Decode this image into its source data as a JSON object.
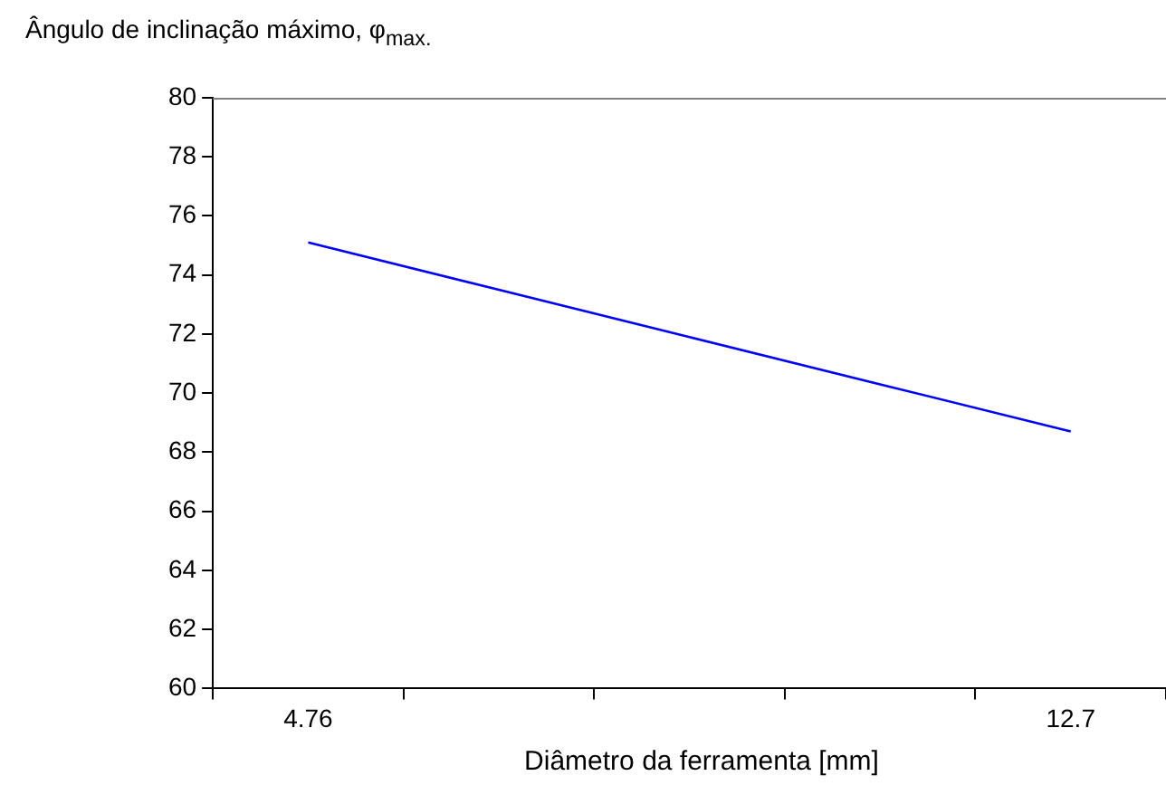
{
  "chart_data": {
    "type": "line",
    "title": "Ângulo de inclinação máximo, φ$_{max.}$",
    "xlabel": "Diâmetro da ferramenta [mm]",
    "categories": [
      "4.76",
      null,
      null,
      null,
      "12.7"
    ],
    "series": [
      {
        "color": "#0000ff",
        "values": [
          75.1,
          73.5,
          71.9,
          70.3,
          68.7
        ]
      }
    ],
    "ylim": [
      60,
      80
    ],
    "yticks": [
      60,
      62,
      64,
      66,
      68,
      70,
      72,
      74,
      76,
      78,
      80
    ],
    "grid": false,
    "legend": false,
    "marker": "none",
    "line_style": "solid"
  }
}
